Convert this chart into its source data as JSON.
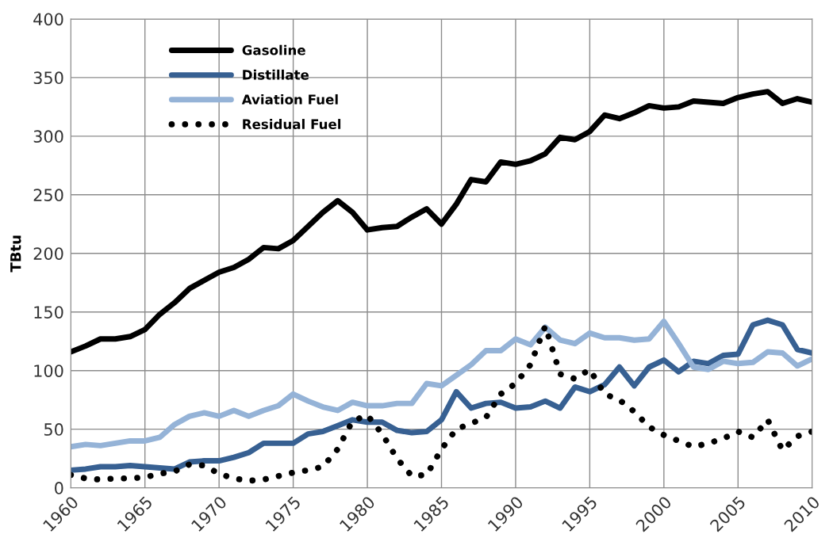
{
  "chart_data": {
    "type": "line",
    "ylabel": "TBtu",
    "x": [
      1960,
      1961,
      1962,
      1963,
      1964,
      1965,
      1966,
      1967,
      1968,
      1969,
      1970,
      1971,
      1972,
      1973,
      1974,
      1975,
      1976,
      1977,
      1978,
      1979,
      1980,
      1981,
      1982,
      1983,
      1984,
      1985,
      1986,
      1987,
      1988,
      1989,
      1990,
      1991,
      1992,
      1993,
      1994,
      1995,
      1996,
      1997,
      1998,
      1999,
      2000,
      2001,
      2002,
      2003,
      2004,
      2005,
      2006,
      2007,
      2008,
      2009,
      2010
    ],
    "series": [
      {
        "name": "Gasoline",
        "color": "#000000",
        "line_style": "solid",
        "values": [
          116,
          121,
          127,
          127,
          129,
          135,
          148,
          158,
          170,
          177,
          184,
          188,
          195,
          205,
          204,
          211,
          223,
          235,
          245,
          235,
          220,
          222,
          223,
          231,
          238,
          225,
          242,
          263,
          261,
          278,
          276,
          279,
          285,
          299,
          297,
          304,
          318,
          315,
          320,
          326,
          324,
          325,
          330,
          329,
          328,
          333,
          336,
          338,
          328,
          332,
          329
        ]
      },
      {
        "name": "Distillate",
        "color": "#376092",
        "line_style": "solid",
        "values": [
          15,
          16,
          18,
          18,
          19,
          18,
          17,
          16,
          22,
          23,
          23,
          26,
          30,
          38,
          38,
          38,
          46,
          48,
          53,
          58,
          56,
          56,
          49,
          47,
          48,
          58,
          82,
          68,
          72,
          73,
          68,
          69,
          74,
          68,
          86,
          82,
          88,
          103,
          87,
          103,
          109,
          99,
          108,
          106,
          113,
          114,
          139,
          143,
          139,
          118,
          115
        ]
      },
      {
        "name": "Aviation Fuel",
        "color": "#95b3d7",
        "line_style": "solid",
        "values": [
          35,
          37,
          36,
          38,
          40,
          40,
          43,
          54,
          61,
          64,
          61,
          66,
          61,
          66,
          70,
          80,
          74,
          69,
          66,
          73,
          70,
          70,
          72,
          72,
          89,
          87,
          96,
          105,
          117,
          117,
          127,
          122,
          137,
          126,
          123,
          132,
          128,
          128,
          126,
          127,
          142,
          123,
          103,
          101,
          108,
          106,
          107,
          116,
          115,
          104,
          110
        ]
      },
      {
        "name": "Residual Fuel",
        "color": "#000000",
        "line_style": "dotted",
        "values": [
          11,
          8,
          7,
          8,
          8,
          9,
          12,
          14,
          20,
          19,
          12,
          8,
          6,
          7,
          10,
          13,
          15,
          18,
          33,
          57,
          62,
          46,
          25,
          10,
          11,
          33,
          50,
          55,
          60,
          80,
          89,
          105,
          138,
          97,
          93,
          101,
          80,
          75,
          65,
          52,
          45,
          40,
          35,
          38,
          42,
          48,
          43,
          58,
          32,
          44,
          48
        ]
      }
    ],
    "xlim": [
      1960,
      2010
    ],
    "xticks": [
      1960,
      1965,
      1970,
      1975,
      1980,
      1985,
      1990,
      1995,
      2000,
      2005,
      2010
    ],
    "ylim": [
      0,
      400
    ],
    "yticks": [
      0,
      50,
      100,
      150,
      200,
      250,
      300,
      350,
      400
    ],
    "grid": true,
    "legend": "top left"
  }
}
